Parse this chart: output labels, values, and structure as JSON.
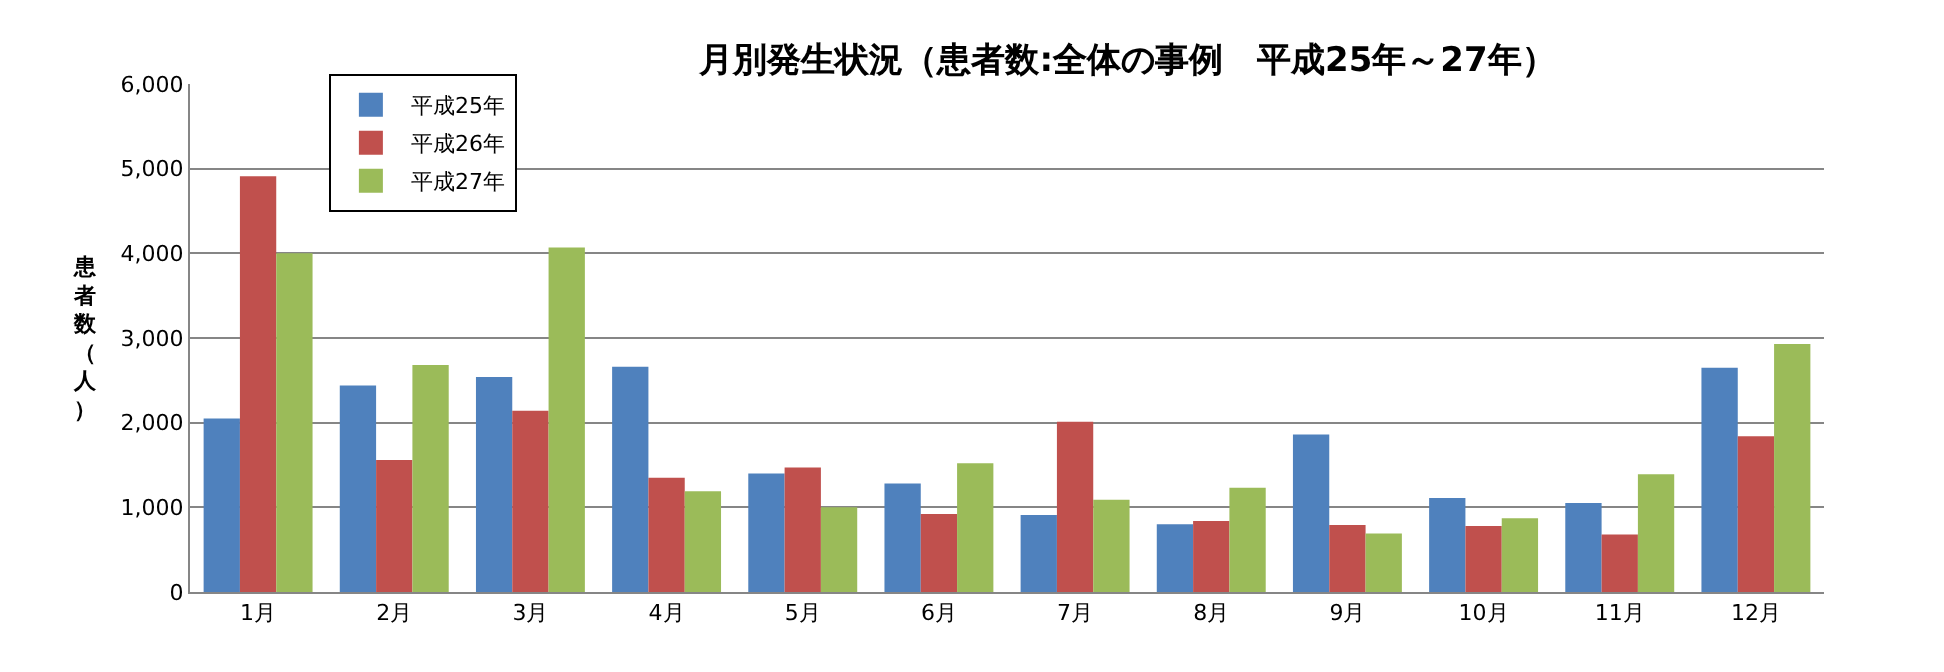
{
  "chart_data": {
    "type": "bar",
    "title": "月別発生状況（患者数:全体の事例　平成25年～27年）",
    "ylabel": "患者数（人）",
    "categories": [
      "1月",
      "2月",
      "3月",
      "4月",
      "5月",
      "6月",
      "7月",
      "8月",
      "9月",
      "10月",
      "11月",
      "12月"
    ],
    "series": [
      {
        "name": "平成25年",
        "color": "#4f81bd",
        "values": [
          2050,
          2440,
          2540,
          2660,
          1400,
          1280,
          910,
          800,
          1860,
          1110,
          1050,
          2650
        ]
      },
      {
        "name": "平成26年",
        "color": "#c0504d",
        "values": [
          4910,
          1560,
          2140,
          1350,
          1470,
          920,
          2010,
          840,
          790,
          780,
          680,
          1840
        ]
      },
      {
        "name": "平成27年",
        "color": "#9bbb59",
        "values": [
          4000,
          2680,
          4070,
          1190,
          1000,
          1520,
          1090,
          1230,
          690,
          870,
          1390,
          2930
        ]
      }
    ],
    "ylim": [
      0,
      6000
    ],
    "yticks": [
      {
        "value": 0,
        "label": "0"
      },
      {
        "value": 1000,
        "label": "1,000"
      },
      {
        "value": 2000,
        "label": "2,000"
      },
      {
        "value": 3000,
        "label": "3,000"
      },
      {
        "value": 4000,
        "label": "4,000"
      },
      {
        "value": 5000,
        "label": "5,000"
      },
      {
        "value": 6000,
        "label": "6,000"
      }
    ],
    "grid": "y",
    "legend": "top left"
  }
}
